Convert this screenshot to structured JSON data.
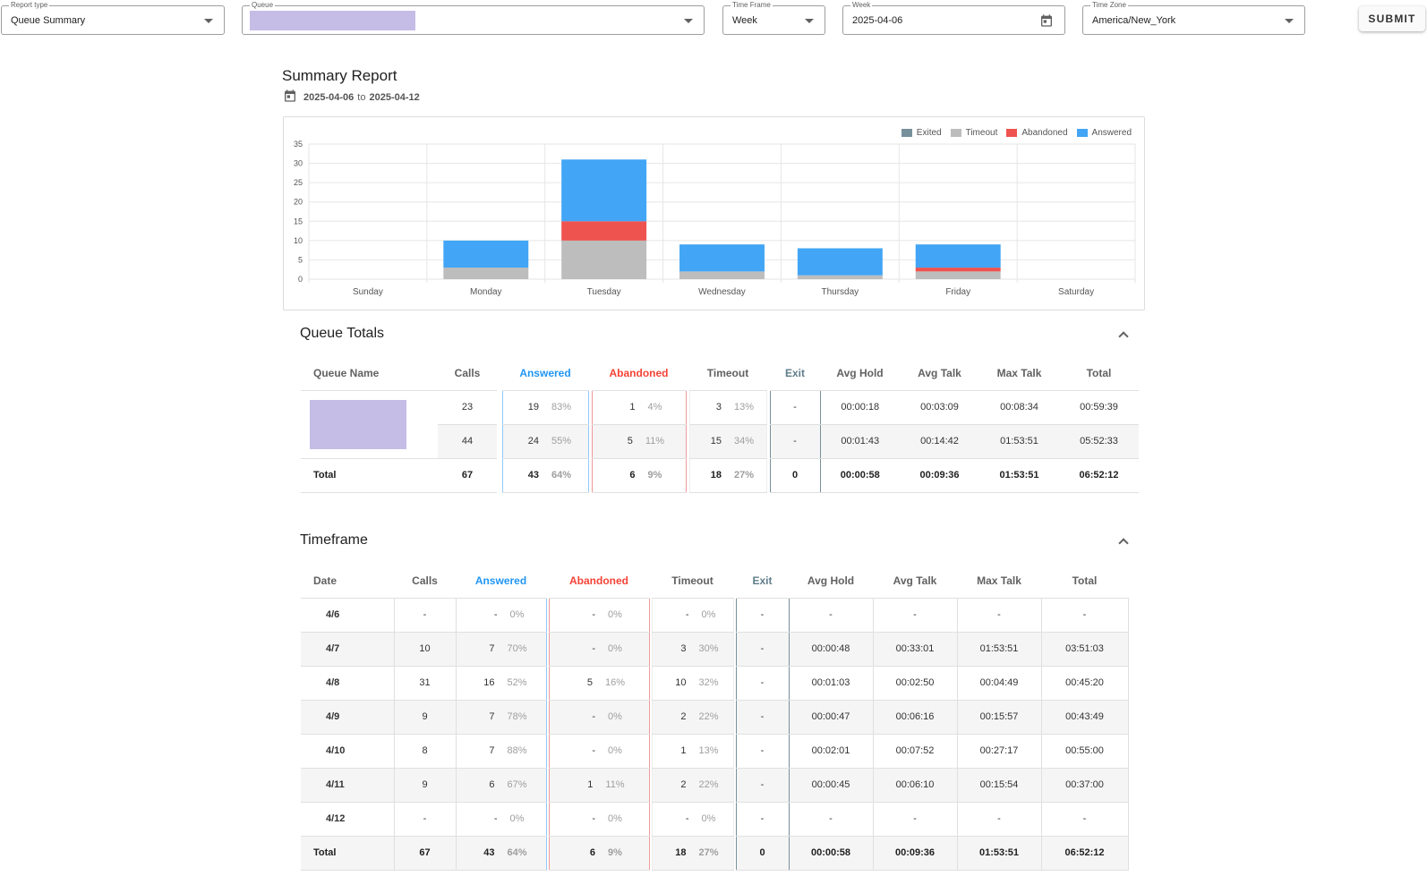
{
  "filters": {
    "report_type": {
      "label": "Report type",
      "value": "Queue Summary"
    },
    "queue": {
      "label": "Queue",
      "value": ""
    },
    "time_frame": {
      "label": "Time Frame",
      "value": "Week"
    },
    "week": {
      "label": "Week",
      "value": "2025-04-06"
    },
    "time_zone": {
      "label": "Time Zone",
      "value": "America/New_York"
    },
    "submit_label": "SUBMIT"
  },
  "report": {
    "title": "Summary Report",
    "start": "2025-04-06",
    "to": "to",
    "end": "2025-04-12"
  },
  "colors": {
    "exited": "#78909c",
    "timeout": "#bdbdbd",
    "abandoned": "#ef5350",
    "answered": "#42a5f5"
  },
  "chart_data": {
    "type": "bar",
    "stacked": true,
    "categories": [
      "Sunday",
      "Monday",
      "Tuesday",
      "Wednesday",
      "Thursday",
      "Friday",
      "Saturday"
    ],
    "series": [
      {
        "name": "Exited",
        "values": [
          0,
          0,
          0,
          0,
          0,
          0,
          0
        ]
      },
      {
        "name": "Timeout",
        "values": [
          0,
          3,
          10,
          2,
          1,
          2,
          0
        ]
      },
      {
        "name": "Abandoned",
        "values": [
          0,
          0,
          5,
          0,
          0,
          1,
          0
        ]
      },
      {
        "name": "Answered",
        "values": [
          0,
          7,
          16,
          7,
          7,
          6,
          0
        ]
      }
    ],
    "yticks": [
      0,
      5,
      10,
      15,
      20,
      25,
      30,
      35
    ],
    "ylim": [
      0,
      35
    ],
    "legend": "top-right",
    "grid": true
  },
  "queue_totals": {
    "title": "Queue Totals",
    "headers": [
      "Queue Name",
      "Calls",
      "Answered",
      "Abandoned",
      "Timeout",
      "Exit",
      "Avg Hold",
      "Avg Talk",
      "Max Talk",
      "Total"
    ],
    "rows": [
      {
        "name": "",
        "calls": "23",
        "ans": "19",
        "ans_pct": "83%",
        "ab": "1",
        "ab_pct": "4%",
        "to": "3",
        "to_pct": "13%",
        "exit": "-",
        "hold": "00:00:18",
        "talk": "00:03:09",
        "max": "00:08:34",
        "total": "00:59:39"
      },
      {
        "name": "",
        "calls": "44",
        "ans": "24",
        "ans_pct": "55%",
        "ab": "5",
        "ab_pct": "11%",
        "to": "15",
        "to_pct": "34%",
        "exit": "-",
        "hold": "00:01:43",
        "talk": "00:14:42",
        "max": "01:53:51",
        "total": "05:52:33"
      }
    ],
    "total": {
      "name": "Total",
      "calls": "67",
      "ans": "43",
      "ans_pct": "64%",
      "ab": "6",
      "ab_pct": "9%",
      "to": "18",
      "to_pct": "27%",
      "exit": "0",
      "hold": "00:00:58",
      "talk": "00:09:36",
      "max": "01:53:51",
      "total": "06:52:12"
    }
  },
  "timeframe": {
    "title": "Timeframe",
    "headers": [
      "Date",
      "Calls",
      "Answered",
      "Abandoned",
      "Timeout",
      "Exit",
      "Avg Hold",
      "Avg Talk",
      "Max Talk",
      "Total"
    ],
    "rows": [
      {
        "date": "4/6",
        "calls": "-",
        "ans": "-",
        "ans_pct": "0%",
        "ab": "-",
        "ab_pct": "0%",
        "to": "-",
        "to_pct": "0%",
        "exit": "-",
        "hold": "-",
        "talk": "-",
        "max": "-",
        "total": "-"
      },
      {
        "date": "4/7",
        "calls": "10",
        "ans": "7",
        "ans_pct": "70%",
        "ab": "-",
        "ab_pct": "0%",
        "to": "3",
        "to_pct": "30%",
        "exit": "-",
        "hold": "00:00:48",
        "talk": "00:33:01",
        "max": "01:53:51",
        "total": "03:51:03"
      },
      {
        "date": "4/8",
        "calls": "31",
        "ans": "16",
        "ans_pct": "52%",
        "ab": "5",
        "ab_pct": "16%",
        "to": "10",
        "to_pct": "32%",
        "exit": "-",
        "hold": "00:01:03",
        "talk": "00:02:50",
        "max": "00:04:49",
        "total": "00:45:20"
      },
      {
        "date": "4/9",
        "calls": "9",
        "ans": "7",
        "ans_pct": "78%",
        "ab": "-",
        "ab_pct": "0%",
        "to": "2",
        "to_pct": "22%",
        "exit": "-",
        "hold": "00:00:47",
        "talk": "00:06:16",
        "max": "00:15:57",
        "total": "00:43:49"
      },
      {
        "date": "4/10",
        "calls": "8",
        "ans": "7",
        "ans_pct": "88%",
        "ab": "-",
        "ab_pct": "0%",
        "to": "1",
        "to_pct": "13%",
        "exit": "-",
        "hold": "00:02:01",
        "talk": "00:07:52",
        "max": "00:27:17",
        "total": "00:55:00"
      },
      {
        "date": "4/11",
        "calls": "9",
        "ans": "6",
        "ans_pct": "67%",
        "ab": "1",
        "ab_pct": "11%",
        "to": "2",
        "to_pct": "22%",
        "exit": "-",
        "hold": "00:00:45",
        "talk": "00:06:10",
        "max": "00:15:54",
        "total": "00:37:00"
      },
      {
        "date": "4/12",
        "calls": "-",
        "ans": "-",
        "ans_pct": "0%",
        "ab": "-",
        "ab_pct": "0%",
        "to": "-",
        "to_pct": "0%",
        "exit": "-",
        "hold": "-",
        "talk": "-",
        "max": "-",
        "total": "-"
      }
    ],
    "total": {
      "date": "Total",
      "calls": "67",
      "ans": "43",
      "ans_pct": "64%",
      "ab": "6",
      "ab_pct": "9%",
      "to": "18",
      "to_pct": "27%",
      "exit": "0",
      "hold": "00:00:58",
      "talk": "00:09:36",
      "max": "01:53:51",
      "total": "06:52:12"
    }
  }
}
